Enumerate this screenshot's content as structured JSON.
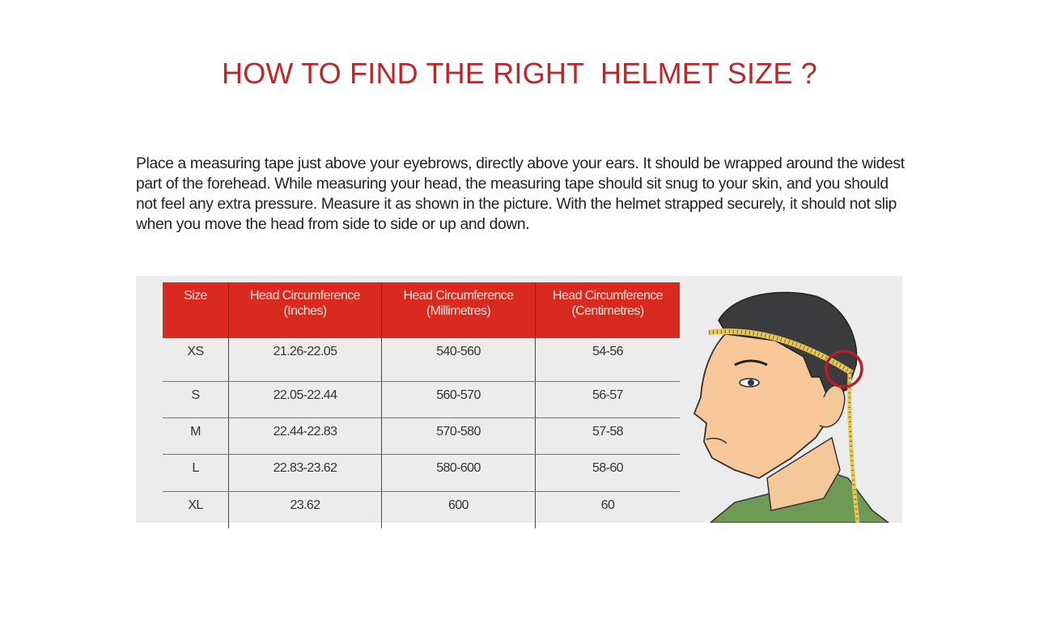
{
  "title": "HOW TO FIND THE RIGHT  HELMET SIZE ?",
  "instructions": "Place a measuring tape just above your eyebrows, directly above your ears. It should be wrapped around the widest part of the forehead. While measuring your head, the measuring tape should sit snug to your skin, and you should not feel any extra pressure. Measure it as shown in the picture. With the helmet strapped securely, it should not slip when you move the head from side to side or up and down.",
  "colors": {
    "title": "#b8282c",
    "header_bg": "#da2a20",
    "panel_bg": "#ececec"
  },
  "table": {
    "headers": [
      {
        "line1": "Size",
        "line2": ""
      },
      {
        "line1": "Head Circumference",
        "line2": "(Inches)"
      },
      {
        "line1": "Head Circumference",
        "line2": "(Millimetres)"
      },
      {
        "line1": "Head Circumference",
        "line2": "(Centimetres)"
      }
    ],
    "rows": [
      [
        "XS",
        "21.26-22.05",
        "540-560",
        "54-56"
      ],
      [
        "S",
        "22.05-22.44",
        "560-570",
        "56-57"
      ],
      [
        "M",
        "22.44-22.83",
        "570-580",
        "57-58"
      ],
      [
        "L",
        "22.83-23.62",
        "580-600",
        "58-60"
      ],
      [
        "XL",
        "23.62",
        "600",
        "60"
      ]
    ]
  },
  "illustration": "head-measuring-tape-icon"
}
